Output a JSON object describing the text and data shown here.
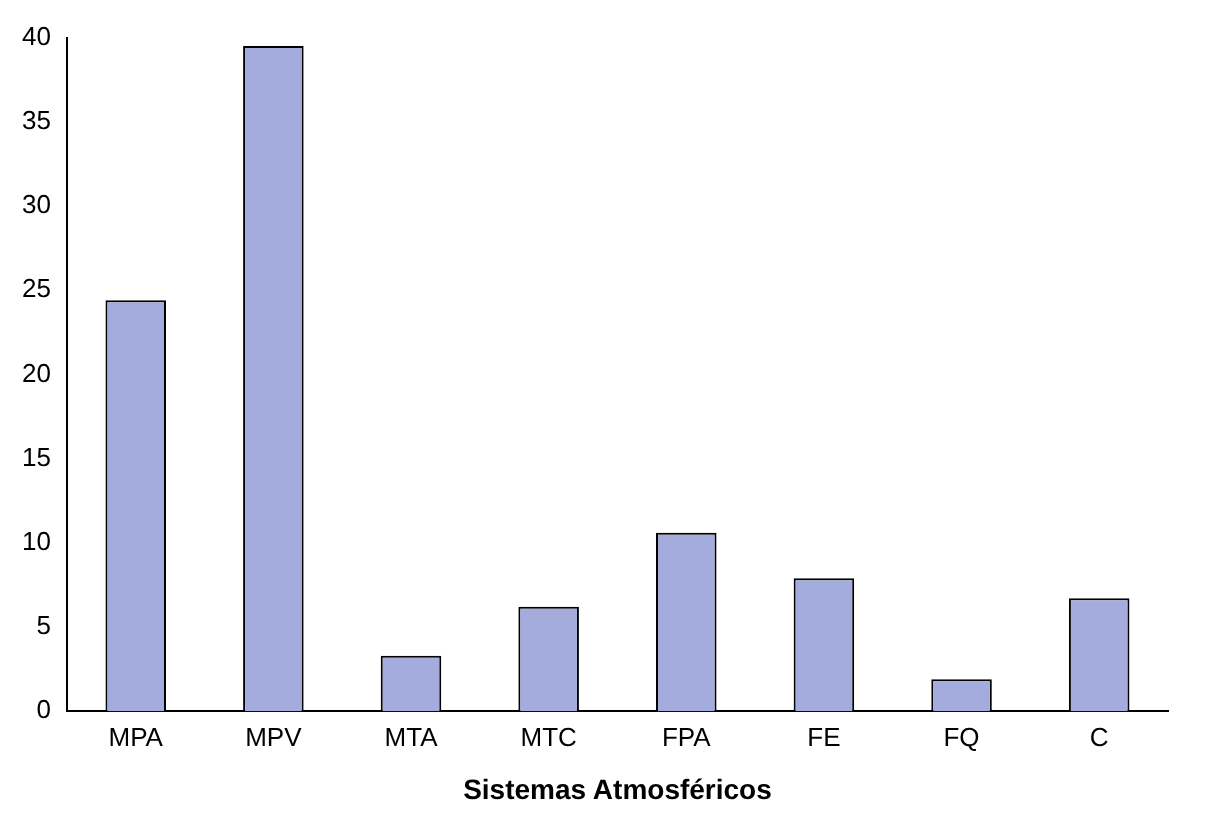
{
  "chart_data": {
    "type": "bar",
    "xlabel": "Sistemas Atmosféricos",
    "categories": [
      "MPA",
      "MPV",
      "MTA",
      "MTC",
      "FPA",
      "FE",
      "FQ",
      "C"
    ],
    "values": [
      24.4,
      39.5,
      3.3,
      6.2,
      10.6,
      7.9,
      1.9,
      6.7
    ],
    "color": "#a3acdc",
    "ylim": [
      0,
      40
    ],
    "yticks": [
      0,
      5,
      10,
      15,
      20,
      25,
      30,
      35,
      40
    ],
    "grid": false,
    "legend": false
  }
}
